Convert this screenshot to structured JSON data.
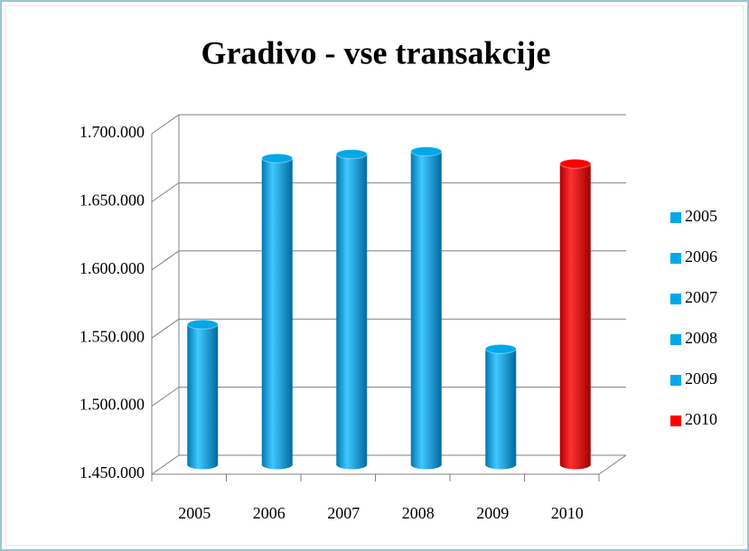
{
  "chart_data": {
    "type": "bar3d",
    "title": "Gradivo - vse transakcije",
    "categories": [
      "2005",
      "2006",
      "2007",
      "2008",
      "2009",
      "2010"
    ],
    "values": [
      1553000,
      1675000,
      1678000,
      1680000,
      1535000,
      1671000
    ],
    "colors": [
      "#00a8e8",
      "#00a8e8",
      "#00a8e8",
      "#00a8e8",
      "#00a8e8",
      "#ff0000"
    ],
    "ylim": [
      1450000,
      1700000
    ],
    "yticks": [
      {
        "value": 1450000,
        "label": "1.450.000"
      },
      {
        "value": 1500000,
        "label": "1.500.000"
      },
      {
        "value": 1550000,
        "label": "1.550.000"
      },
      {
        "value": 1600000,
        "label": "1.600.000"
      },
      {
        "value": 1650000,
        "label": "1.650.000"
      },
      {
        "value": 1700000,
        "label": "1.700.000"
      }
    ],
    "grid": true,
    "legend": "right"
  }
}
